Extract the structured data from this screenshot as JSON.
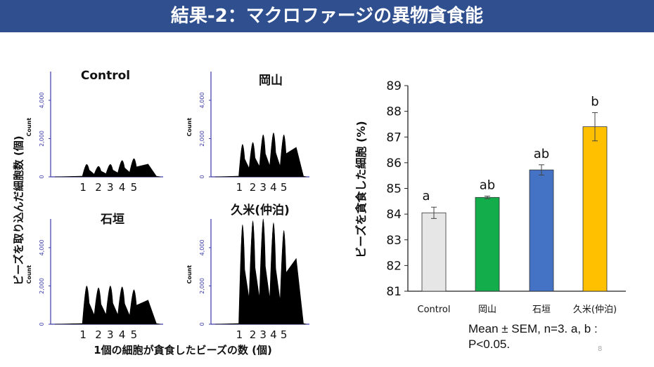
{
  "slide": {
    "title": "結果-2：マクロファージの異物貪食能",
    "page_number": "8",
    "note_line1": "Mean ± SEM, n=3. a, b :",
    "note_line2": "P<0.05.",
    "accent_color": "#2f4f8f"
  },
  "histograms": {
    "y_axis_title": "ビーズを取り込んだ細胞数 (個)",
    "x_axis_title": "1個の細胞が貪食したビーズの数 (個)",
    "count_label": "Count",
    "y_ticks": [
      "0",
      "2,000",
      "4,000"
    ],
    "x_ticks": [
      "1",
      "2",
      "3",
      "4",
      "5"
    ],
    "axis_color": "#3a3aa8"
  },
  "chart_data": [
    {
      "type": "area",
      "title": "Control",
      "xlabel": "1個の細胞が貪食したビーズの数 (個)",
      "ylabel": "Count",
      "ylim": [
        0,
        5500
      ],
      "yticks": [
        0,
        2000,
        4000
      ],
      "xticks": [
        1,
        2,
        3,
        4,
        5
      ],
      "peaks": [
        {
          "x": 1,
          "y": 650
        },
        {
          "x": 2,
          "y": 550
        },
        {
          "x": 3,
          "y": 650
        },
        {
          "x": 4,
          "y": 850
        },
        {
          "x": 5,
          "y": 950
        }
      ]
    },
    {
      "type": "area",
      "title": "岡山",
      "xlabel": "1個の細胞が貪食したビーズの数 (個)",
      "ylabel": "Count",
      "ylim": [
        0,
        5500
      ],
      "yticks": [
        0,
        2000,
        4000
      ],
      "xticks": [
        1,
        2,
        3,
        4,
        5
      ],
      "peaks": [
        {
          "x": 1,
          "y": 1700
        },
        {
          "x": 2,
          "y": 1800
        },
        {
          "x": 3,
          "y": 2200
        },
        {
          "x": 4,
          "y": 2300
        },
        {
          "x": 5,
          "y": 2200
        }
      ]
    },
    {
      "type": "area",
      "title": "石垣",
      "xlabel": "1個の細胞が貪食したビーズの数 (個)",
      "ylabel": "Count",
      "ylim": [
        0,
        5500
      ],
      "yticks": [
        0,
        2000,
        4000
      ],
      "xticks": [
        1,
        2,
        3,
        4,
        5
      ],
      "peaks": [
        {
          "x": 1,
          "y": 2000
        },
        {
          "x": 2,
          "y": 1900
        },
        {
          "x": 3,
          "y": 2000
        },
        {
          "x": 4,
          "y": 1950
        },
        {
          "x": 5,
          "y": 1800
        }
      ]
    },
    {
      "type": "area",
      "title": "久米(仲泊)",
      "xlabel": "1個の細胞が貪食したビーズの数 (個)",
      "ylabel": "Count",
      "ylim": [
        0,
        5500
      ],
      "yticks": [
        0,
        2000,
        4000
      ],
      "xticks": [
        1,
        2,
        3,
        4,
        5
      ],
      "peaks": [
        {
          "x": 1,
          "y": 5200
        },
        {
          "x": 2,
          "y": 5400
        },
        {
          "x": 3,
          "y": 5500
        },
        {
          "x": 4,
          "y": 5300
        },
        {
          "x": 5,
          "y": 4900
        }
      ]
    },
    {
      "type": "bar",
      "ylabel": "ビーズを貪食した細胞 (%)",
      "ylim": [
        81,
        89
      ],
      "yticks": [
        81,
        82,
        83,
        84,
        85,
        86,
        87,
        88,
        89
      ],
      "categories": [
        "Control",
        "岡山",
        "石垣",
        "久米(仲泊)"
      ],
      "values": [
        84.05,
        84.65,
        85.72,
        87.4
      ],
      "errors": [
        0.22,
        0.05,
        0.2,
        0.55
      ],
      "significance_letters": [
        "a",
        "ab",
        "ab",
        "b"
      ],
      "colors": [
        "#e6e6e6",
        "#13ae4b",
        "#4472c4",
        "#ffc000"
      ],
      "grid": false
    }
  ]
}
